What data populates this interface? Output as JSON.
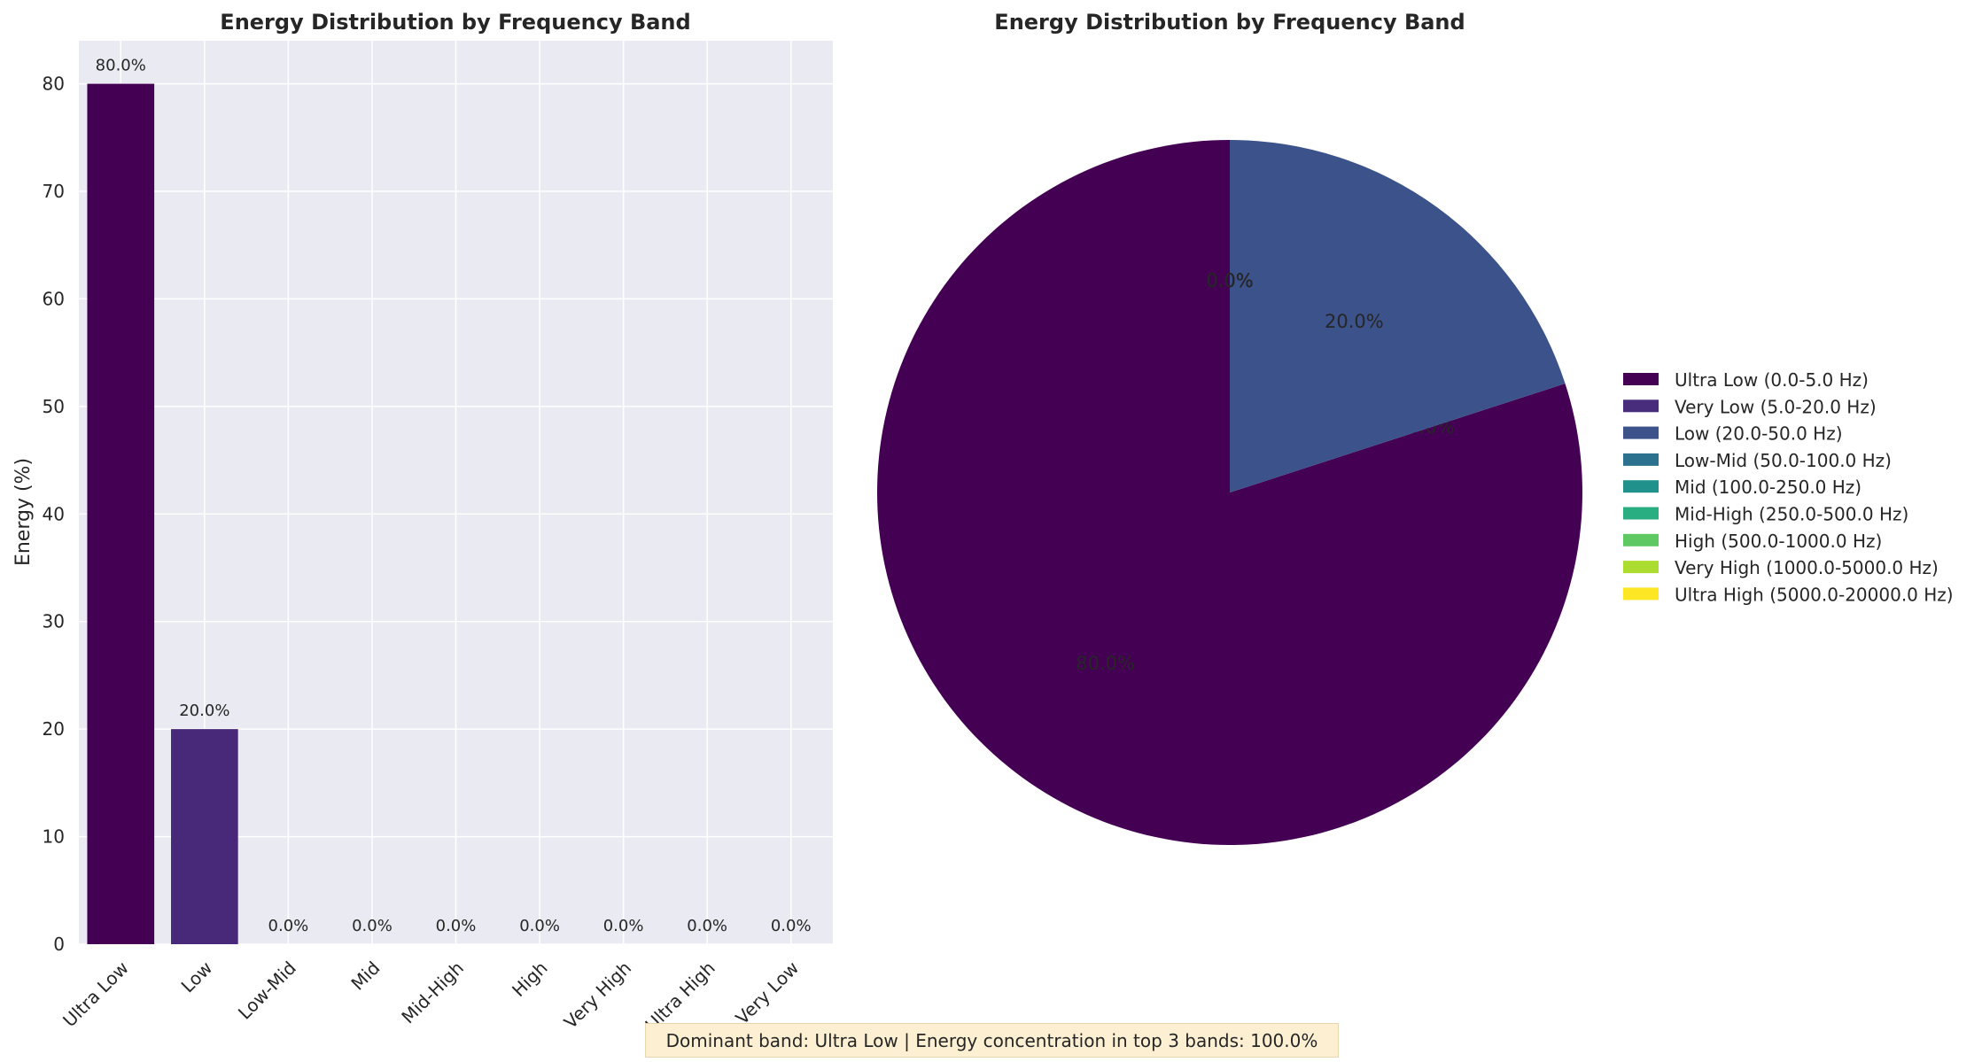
{
  "chart_data": [
    {
      "type": "bar",
      "title": "Energy Distribution by Frequency Band",
      "xlabel": "",
      "ylabel": "Energy (%)",
      "ylim": [
        0,
        84
      ],
      "yticks": [
        "0",
        "10",
        "20",
        "30",
        "40",
        "50",
        "60",
        "70",
        "80"
      ],
      "categories": [
        "Ultra Low",
        "Low",
        "Low-Mid",
        "Mid",
        "Mid-High",
        "High",
        "Very High",
        "Ultra High",
        "Very Low"
      ],
      "values": [
        80.0,
        20.0,
        0.0,
        0.0,
        0.0,
        0.0,
        0.0,
        0.0,
        0.0
      ],
      "value_labels": [
        "80.0%",
        "20.0%",
        "0.0%",
        "0.0%",
        "0.0%",
        "0.0%",
        "0.0%",
        "0.0%",
        "0.0%"
      ],
      "colors": [
        "#440154",
        "#482878",
        "#3e4989",
        "#31688e",
        "#26828e",
        "#1f9e89",
        "#35b779",
        "#6ece58",
        "#b5de2b"
      ],
      "grid": true
    },
    {
      "type": "pie",
      "title": "Energy Distribution by Frequency Band",
      "labels": [
        "Ultra Low (0.0-5.0 Hz)",
        "Very Low (5.0-20.0 Hz)",
        "Low (20.0-50.0 Hz)",
        "Low-Mid (50.0-100.0 Hz)",
        "Mid (100.0-250.0 Hz)",
        "Mid-High (250.0-500.0 Hz)",
        "High (500.0-1000.0 Hz)",
        "Very High (1000.0-5000.0 Hz)",
        "Ultra High (5000.0-20000.0 Hz)"
      ],
      "values": [
        80.0,
        0.0,
        20.0,
        0.0,
        0.0,
        0.0,
        0.0,
        0.0,
        0.0
      ],
      "slice_labels": [
        "80.0%",
        "0.0%",
        "20.0%",
        "0.0%",
        "0.0%",
        "0.0%",
        "0.0%",
        "0.0%",
        "0.0%"
      ],
      "colors": [
        "#440154",
        "#472d7b",
        "#3b528b",
        "#2c728e",
        "#21918c",
        "#28ae80",
        "#5ec962",
        "#addc30",
        "#fde725"
      ],
      "legend_position": "right"
    }
  ],
  "summary": "Dominant band: Ultra Low | Energy concentration in top 3 bands: 100.0%"
}
